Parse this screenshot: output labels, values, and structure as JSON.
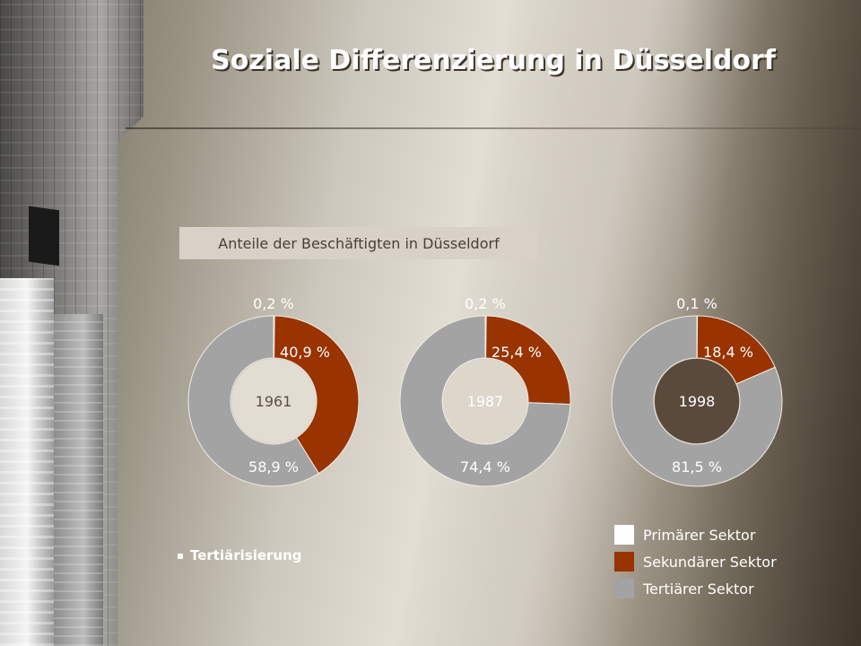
{
  "title": "Soziale Differenzierung in Düsseldorf",
  "subtitle": "Anteile der Beschäftigten in Düsseldorf",
  "bullet": "Tertiärisierung",
  "colors": {
    "primary": "#ffffff",
    "secondary": "#993300",
    "tertiary": "#a3a3a3"
  },
  "legend": [
    {
      "label": "Primärer Sektor",
      "color": "#ffffff"
    },
    {
      "label": "Sekundärer Sektor",
      "color": "#993300"
    },
    {
      "label": "Tertiärer Sektor",
      "color": "#a3a3a3"
    }
  ],
  "chart_data": [
    {
      "type": "pie",
      "center_label": "1961",
      "categories": [
        "Primärer Sektor",
        "Sekundärer Sektor",
        "Tertiärer Sektor"
      ],
      "values": [
        0.2,
        40.9,
        58.9
      ],
      "value_labels": [
        "0,2 %",
        "40,9 %",
        "58,9 %"
      ]
    },
    {
      "type": "pie",
      "center_label": "1987",
      "categories": [
        "Primärer Sektor",
        "Sekundärer Sektor",
        "Tertiärer Sektor"
      ],
      "values": [
        0.2,
        25.4,
        74.4
      ],
      "value_labels": [
        "0,2 %",
        "25,4 %",
        "74,4 %"
      ]
    },
    {
      "type": "pie",
      "center_label": "1998",
      "categories": [
        "Primärer Sektor",
        "Sekundärer Sektor",
        "Tertiärer Sektor"
      ],
      "values": [
        0.1,
        18.4,
        81.5
      ],
      "value_labels": [
        "0,1 %",
        "18,4 %",
        "81,5 %"
      ]
    }
  ]
}
